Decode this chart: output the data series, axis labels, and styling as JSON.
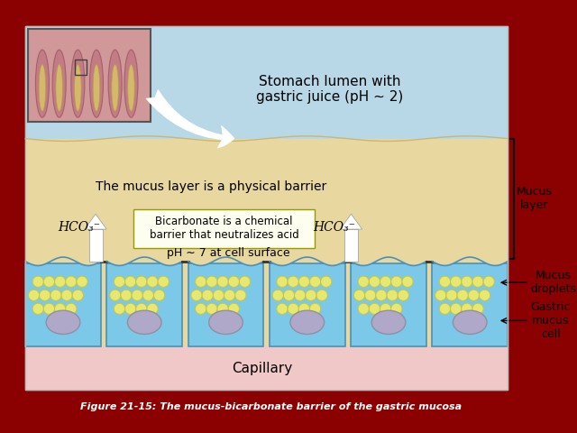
{
  "bg_color": "#8B0000",
  "main_bg": "#FFFFFF",
  "lumen_color": "#B8D8E8",
  "mucus_layer_color": "#E8D8A0",
  "capillary_color": "#F0C8C8",
  "cell_color": "#7BC8E8",
  "cell_border": "#4A90B8",
  "droplet_color": "#E8E870",
  "droplet_border": "#C8C840",
  "nucleus_color": "#B0A8C8",
  "nucleus_border": "#9090A0",
  "title_text": "Figure 21-15: The mucus-bicarbonate barrier of the gastric mucosa",
  "lumen_text": "Stomach lumen with\ngastric juice (pH ∼ 2)",
  "mucus_barrier_text": "The mucus layer is a physical barrier",
  "bicarb_text": "Bicarbonate is a chemical\nbarrier that neutralizes acid",
  "ph_text": "pH ∼ 7 at cell surface",
  "hco3_left": "HCO₃⁻",
  "hco3_right": "HCO₃⁻",
  "mucus_layer_label": "Mucus\nlayer",
  "mucus_droplets_label": "Mucus\ndroplets",
  "gastric_cell_label": "Gastric\nmucus\ncell",
  "capillary_label": "Capillary",
  "arrow_color": "#FFFFFF",
  "inset_bg": "#C8908A",
  "inset_border": "#555555",
  "inset_fold_color": "#C07080",
  "inset_inner_color": "#D8C870"
}
